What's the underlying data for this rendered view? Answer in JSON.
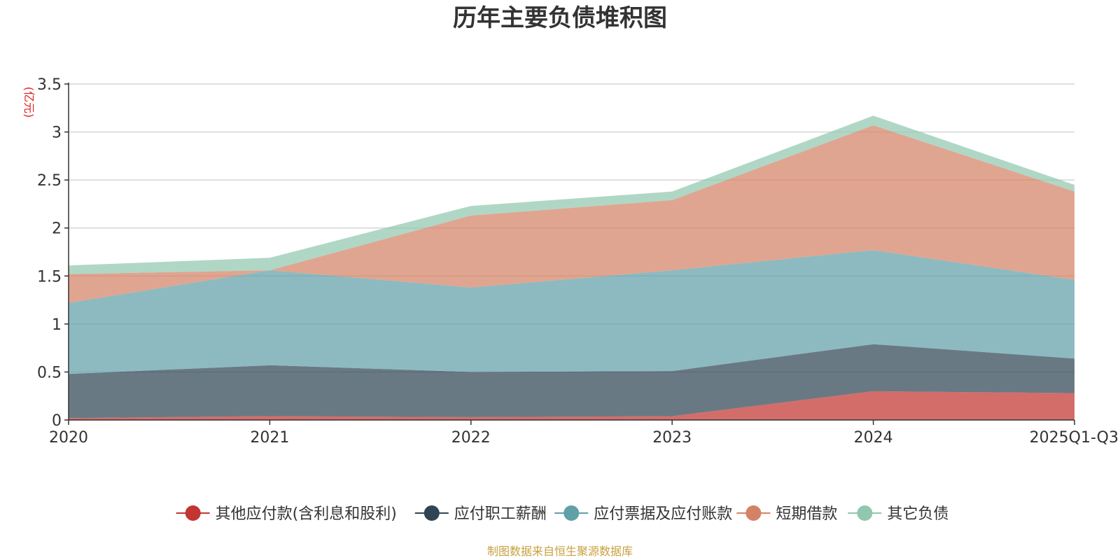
{
  "colors": {
    "title": "#333333",
    "axis": "#333333",
    "grid": "#cccccc",
    "unit": "#e02020",
    "source": "#c8a040"
  },
  "chart_data": {
    "type": "area",
    "stacked": true,
    "title": "历年主要负债堆积图",
    "ylabel": "(亿元)",
    "xlabel": "",
    "grid": true,
    "legend_position": "bottom",
    "categories": [
      "2020",
      "2021",
      "2022",
      "2023",
      "2024",
      "2025Q1-Q3"
    ],
    "ylim": [
      0,
      3.5
    ],
    "yticks": [
      0,
      0.5,
      1,
      1.5,
      2,
      2.5,
      3,
      3.5
    ],
    "ytick_labels": [
      "0",
      "0.5",
      "1",
      "1.5",
      "2",
      "2.5",
      "3",
      "3.5"
    ],
    "series": [
      {
        "name": "其他应付款(含利息和股利)",
        "color": "#c23531",
        "values": [
          0.02,
          0.04,
          0.03,
          0.04,
          0.3,
          0.28
        ]
      },
      {
        "name": "应付职工薪酬",
        "color": "#2f4554",
        "values": [
          0.46,
          0.53,
          0.47,
          0.47,
          0.49,
          0.36
        ]
      },
      {
        "name": "应付票据及应付账款",
        "color": "#61a0a8",
        "values": [
          0.74,
          0.99,
          0.88,
          1.05,
          0.98,
          0.82
        ]
      },
      {
        "name": "短期借款",
        "color": "#d48265",
        "values": [
          0.3,
          0.0,
          0.75,
          0.73,
          1.3,
          0.92
        ]
      },
      {
        "name": "其它负债",
        "color": "#91c7ae",
        "values": [
          0.09,
          0.13,
          0.1,
          0.09,
          0.1,
          0.07
        ]
      }
    ]
  },
  "source_note": "制图数据来自恒生聚源数据库"
}
